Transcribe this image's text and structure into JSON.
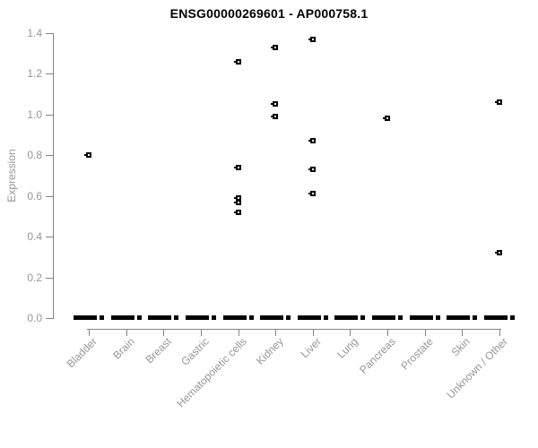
{
  "chart_data": {
    "type": "scatter",
    "title": "ENSG00000269601 - AP000758.1",
    "xlabel": "",
    "ylabel": "Expression",
    "ylim": [
      0.0,
      1.4
    ],
    "yticks": [
      0.0,
      0.2,
      0.4,
      0.6,
      0.8,
      1.0,
      1.2,
      1.4
    ],
    "ytick_labels": [
      "0.0",
      "0.2",
      "0.4",
      "0.6",
      "0.8",
      "1.0",
      "1.2",
      "1.4"
    ],
    "grid": false,
    "legend_position": "none",
    "marker": "small-open-square",
    "zero_cluster_note": "every category shows a dense overlapping cluster of points at 0.0 rendered as a thick black dash",
    "categories": [
      "Bladder",
      "Brain",
      "Breast",
      "Gastric",
      "Hematopoietic cells",
      "Kidney",
      "Liver",
      "Lung",
      "Pancreas",
      "Prostate",
      "Skin",
      "Unknown / Other"
    ],
    "groups": [
      {
        "category": "Bladder",
        "nonzero_values": [
          0.8
        ],
        "has_zero_cluster": true
      },
      {
        "category": "Brain",
        "nonzero_values": [],
        "has_zero_cluster": true
      },
      {
        "category": "Breast",
        "nonzero_values": [],
        "has_zero_cluster": true
      },
      {
        "category": "Gastric",
        "nonzero_values": [],
        "has_zero_cluster": true
      },
      {
        "category": "Hematopoietic cells",
        "nonzero_values": [
          1.26,
          0.74,
          0.59,
          0.57,
          0.52
        ],
        "has_zero_cluster": true
      },
      {
        "category": "Kidney",
        "nonzero_values": [
          1.33,
          1.05,
          0.99
        ],
        "has_zero_cluster": true
      },
      {
        "category": "Liver",
        "nonzero_values": [
          1.37,
          0.87,
          0.73,
          0.61
        ],
        "has_zero_cluster": true
      },
      {
        "category": "Lung",
        "nonzero_values": [],
        "has_zero_cluster": true
      },
      {
        "category": "Pancreas",
        "nonzero_values": [
          0.98
        ],
        "has_zero_cluster": true
      },
      {
        "category": "Prostate",
        "nonzero_values": [],
        "has_zero_cluster": true
      },
      {
        "category": "Skin",
        "nonzero_values": [],
        "has_zero_cluster": true
      },
      {
        "category": "Unknown / Other",
        "nonzero_values": [
          1.06,
          0.32
        ],
        "has_zero_cluster": true
      }
    ],
    "colors": {
      "marker": "#000000",
      "zero_bar": "#000000",
      "axis_line": "#848484",
      "axis_text": "#969696",
      "title": "#000000",
      "background": "#ffffff"
    }
  }
}
